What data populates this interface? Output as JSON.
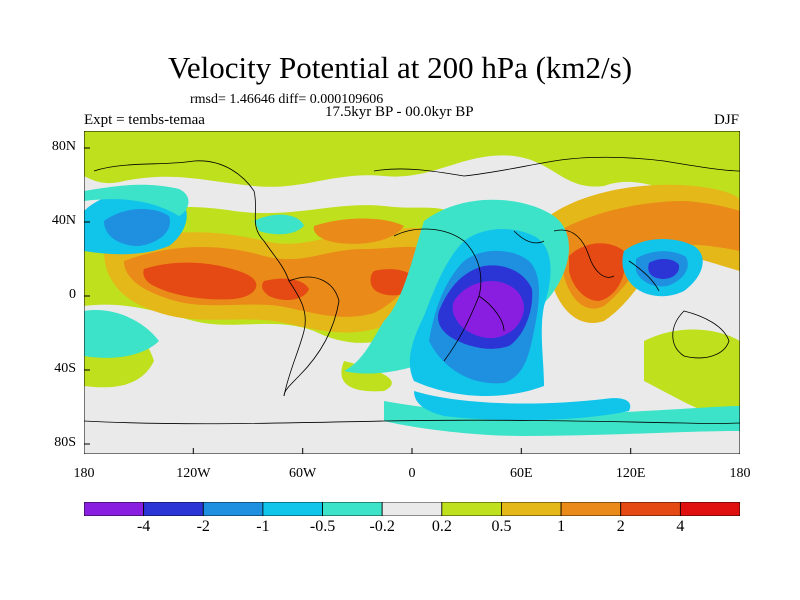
{
  "title": "Velocity Potential at 200 hPa (km2/s)",
  "stats_line": "rmsd= 1.46646 diff= 0.000109606",
  "period": "17.5kyr BP - 00.0kyr BP",
  "experiment": "Expt = tembs-temaa",
  "season": "DJF",
  "x_ticks": [
    "180",
    "120W",
    "60W",
    "0",
    "60E",
    "120E",
    "180"
  ],
  "y_ticks": [
    "80N",
    "40N",
    "0",
    "40S",
    "80S"
  ],
  "colorbar": {
    "labels": [
      "-4",
      "-2",
      "-1",
      "-0.5",
      "-0.2",
      "0.2",
      "0.5",
      "1",
      "2",
      "4"
    ],
    "colors": [
      "#8a1ee0",
      "#2b35d6",
      "#1f8fe0",
      "#11c4ea",
      "#3ce3c8",
      "#eaeaea",
      "#bfe01c",
      "#e5b81a",
      "#ea8a18",
      "#e54a14",
      "#e01010"
    ]
  },
  "colors": {
    "bg_low": "#eaeaea",
    "pos_weak": "#bfe01c",
    "pos_mid": "#e5b81a",
    "pos_strong": "#ea8a18",
    "pos_vstrong": "#e54a14",
    "pos_max": "#e01010",
    "neg_weak": "#3ce3c8",
    "neg_mid": "#11c4ea",
    "neg_strong": "#1f8fe0",
    "neg_vstrong": "#2b35d6",
    "neg_max": "#8a1ee0"
  }
}
